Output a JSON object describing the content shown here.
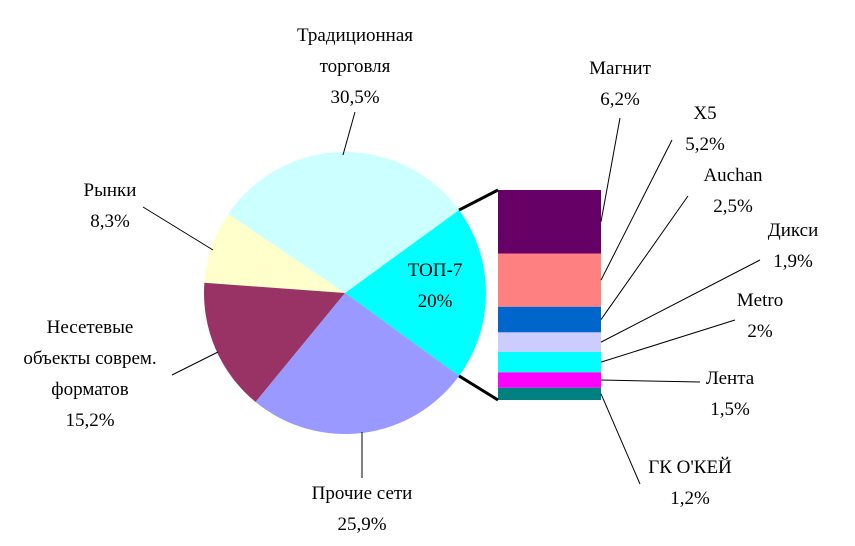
{
  "chart_data": {
    "type": "pie",
    "pie": {
      "categories": [
        "ТОП-7",
        "Традиционная\nторговля",
        "Рынки",
        "Несетевые\nобъекты соврем.\nформатов",
        "Прочие сети"
      ],
      "values": [
        20,
        30.5,
        8.3,
        15.2,
        25.9
      ],
      "value_labels": [
        "20%",
        "30,5%",
        "8,3%",
        "15,2%",
        "25,9%"
      ],
      "colors": [
        "#00ffff",
        "#ccffff",
        "#ffffcc",
        "#993366",
        "#9999ff"
      ]
    },
    "bar": {
      "categories": [
        "Магнит",
        "X5",
        "Auchan",
        "Дикси",
        "Metro",
        "Лента",
        "ГК О'КЕЙ"
      ],
      "values": [
        6.2,
        5.2,
        2.5,
        1.9,
        2,
        1.5,
        1.2
      ],
      "value_labels": [
        "6,2%",
        "5,2%",
        "2,5%",
        "1,9%",
        "2%",
        "1,5%",
        "1,2%"
      ],
      "colors": [
        "#660066",
        "#ff8080",
        "#0066cc",
        "#ccccff",
        "#00ffff",
        "#ff00ff",
        "#008080"
      ]
    }
  }
}
